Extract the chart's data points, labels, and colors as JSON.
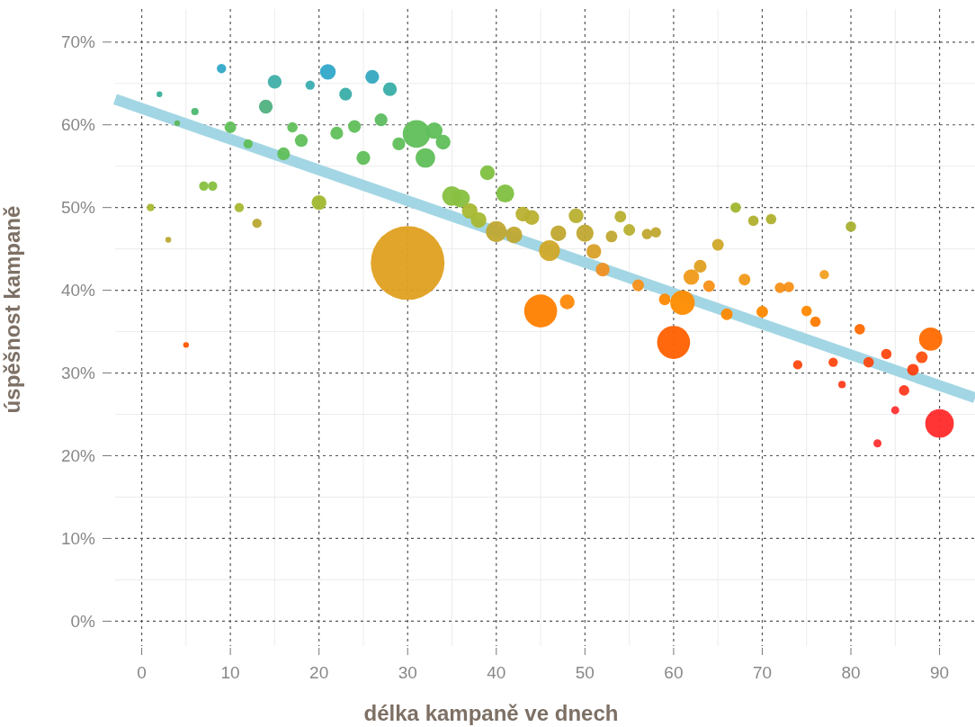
{
  "chart_data": {
    "type": "bubble",
    "xlabel": "délka kampaně ve dnech",
    "ylabel": "úspěšnost kampaně",
    "xlim": [
      -3,
      94
    ],
    "xticks": [
      0,
      10,
      20,
      30,
      40,
      50,
      60,
      70,
      80,
      90
    ],
    "ylim": [
      -3,
      74
    ],
    "yticks": [
      {
        "value": 0,
        "label": "0%"
      },
      {
        "value": 10,
        "label": "10%"
      },
      {
        "value": 20,
        "label": "20%"
      },
      {
        "value": 30,
        "label": "30%"
      },
      {
        "value": 40,
        "label": "40%"
      },
      {
        "value": 50,
        "label": "50%"
      },
      {
        "value": 60,
        "label": "60%"
      },
      {
        "value": 70,
        "label": "70%"
      }
    ],
    "grid": true,
    "series": [
      {
        "type": "line",
        "color": "#a3d6e4",
        "x": [
          -3,
          94
        ],
        "values": [
          63.1,
          27.0
        ]
      },
      {
        "x": [
          1,
          2,
          3,
          4,
          5,
          6,
          7,
          8,
          9,
          10,
          11,
          12,
          13,
          14,
          15,
          16,
          17,
          18,
          19,
          20,
          21,
          22,
          23,
          24,
          25,
          26,
          27,
          28,
          29,
          30,
          31,
          32,
          33,
          34,
          35,
          36,
          37,
          38,
          39,
          40,
          41,
          42,
          43,
          44,
          45,
          46,
          47,
          48,
          49,
          50,
          51,
          52,
          53,
          54,
          55,
          56,
          57,
          58,
          59,
          60,
          61,
          62,
          63,
          64,
          65,
          66,
          67,
          68,
          69,
          70,
          71,
          72,
          73,
          74,
          75,
          76,
          77,
          78,
          79,
          80,
          81,
          82,
          83,
          84,
          85,
          86,
          87,
          88,
          89,
          90
        ],
        "values": [
          50.0,
          63.7,
          46.1,
          60.2,
          33.4,
          61.6,
          52.6,
          52.6,
          66.8,
          59.7,
          50.0,
          57.7,
          48.1,
          62.2,
          65.2,
          56.5,
          59.7,
          58.1,
          64.8,
          50.6,
          66.4,
          59.0,
          63.7,
          59.8,
          56.0,
          65.8,
          60.6,
          64.3,
          57.7,
          43.3,
          58.9,
          56.0,
          59.3,
          57.9,
          51.4,
          51.1,
          49.6,
          48.5,
          54.2,
          47.1,
          51.7,
          46.7,
          49.2,
          48.8,
          37.5,
          44.8,
          46.9,
          38.6,
          49.0,
          46.9,
          44.7,
          42.5,
          46.5,
          48.9,
          47.3,
          40.6,
          46.8,
          47.0,
          38.9,
          33.7,
          38.5,
          41.6,
          42.9,
          40.5,
          45.5,
          37.1,
          50.0,
          41.3,
          48.4,
          37.4,
          48.6,
          40.3,
          40.4,
          31.0,
          37.5,
          36.2,
          41.9,
          31.3,
          28.6,
          47.7,
          35.3,
          31.3,
          21.5,
          32.3,
          25.5,
          27.9,
          30.4,
          31.9,
          34.1,
          23.9
        ],
        "sizes": [
          0.01,
          0.006,
          0.006,
          0.006,
          0.006,
          0.01,
          0.016,
          0.016,
          0.016,
          0.025,
          0.016,
          0.016,
          0.016,
          0.035,
          0.035,
          0.03,
          0.02,
          0.03,
          0.016,
          0.04,
          0.045,
          0.03,
          0.03,
          0.03,
          0.035,
          0.035,
          0.03,
          0.035,
          0.03,
          1,
          0.14,
          0.07,
          0.05,
          0.04,
          0.07,
          0.06,
          0.045,
          0.045,
          0.04,
          0.08,
          0.06,
          0.05,
          0.04,
          0.04,
          0.2,
          0.08,
          0.045,
          0.04,
          0.04,
          0.055,
          0.04,
          0.035,
          0.025,
          0.025,
          0.025,
          0.025,
          0.02,
          0.02,
          0.025,
          0.2,
          0.11,
          0.045,
          0.03,
          0.025,
          0.025,
          0.025,
          0.02,
          0.025,
          0.02,
          0.025,
          0.02,
          0.02,
          0.02,
          0.016,
          0.02,
          0.02,
          0.016,
          0.016,
          0.01,
          0.02,
          0.02,
          0.02,
          0.012,
          0.02,
          0.012,
          0.02,
          0.025,
          0.025,
          0.1,
          0.15
        ],
        "colors": [
          "#a8b832",
          "#3aae9a",
          "#b8a830",
          "#5cb85c",
          "#ff5500",
          "#4cb870",
          "#88c040",
          "#88c040",
          "#30a8c8",
          "#60bf5a",
          "#a8b832",
          "#60bf5a",
          "#b8a830",
          "#50b080",
          "#40b0a8",
          "#60bf5a",
          "#60bf5a",
          "#60bf5a",
          "#3aaeb0",
          "#a0b830",
          "#30a8c8",
          "#60bf5a",
          "#3aaea8",
          "#60bf5a",
          "#60bf5a",
          "#35a8c0",
          "#5cbc60",
          "#3aaea8",
          "#60bf5a",
          "#e0a020",
          "#60bf5a",
          "#60bf5a",
          "#60bf5a",
          "#60bf5a",
          "#88c040",
          "#88c040",
          "#a8b832",
          "#a8b832",
          "#80c040",
          "#c0a830",
          "#80c040",
          "#c0a830",
          "#b8b030",
          "#b8b030",
          "#ff8000",
          "#d0a828",
          "#c0a830",
          "#ff8808",
          "#b8b030",
          "#c0a830",
          "#d8a028",
          "#f09020",
          "#c0a830",
          "#b8b030",
          "#b8b030",
          "#f89018",
          "#c0a830",
          "#c0a830",
          "#ff8800",
          "#ff6000",
          "#ff8c00",
          "#f09a18",
          "#e0a020",
          "#f89018",
          "#d0a828",
          "#ff8800",
          "#a0b830",
          "#f09a18",
          "#b0b030",
          "#ff8800",
          "#b0b030",
          "#f89018",
          "#f89018",
          "#ff4810",
          "#ff8800",
          "#ff7a00",
          "#f0a020",
          "#ff4810",
          "#ff3a20",
          "#a8b030",
          "#ff6a00",
          "#ff4810",
          "#ff3030",
          "#ff4810",
          "#ff3030",
          "#ff3a20",
          "#ff4010",
          "#ff5010",
          "#ff6a00",
          "#ff2a2a"
        ]
      }
    ]
  }
}
